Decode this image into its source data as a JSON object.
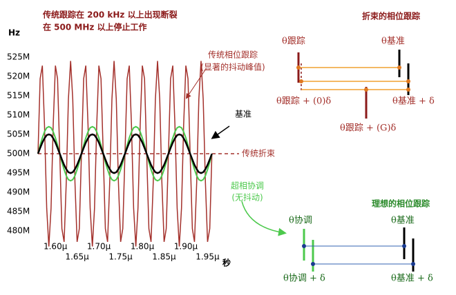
{
  "chart_data": {
    "type": "line",
    "title": [
      "传统跟踪在 200 kHz 以上出现断裂",
      "在 500 MHz 以上停止工作"
    ],
    "y_label": "Hz",
    "x_label": "秒",
    "xlim": [
      1.56,
      1.97
    ],
    "ylim": [
      477,
      528
    ],
    "xticks": [
      {
        "value": 1.6,
        "label": "1.60µ"
      },
      {
        "value": 1.65,
        "label": "1.65µ"
      },
      {
        "value": 1.7,
        "label": "1.70µ"
      },
      {
        "value": 1.75,
        "label": "1.75µ"
      },
      {
        "value": 1.8,
        "label": "1.80µ"
      },
      {
        "value": 1.85,
        "label": "1.85µ"
      },
      {
        "value": 1.9,
        "label": "1.90µ"
      },
      {
        "value": 1.95,
        "label": "1.95µ"
      }
    ],
    "yticks": [
      {
        "value": 480,
        "label": "480M"
      },
      {
        "value": 485,
        "label": "485M"
      },
      {
        "value": 490,
        "label": "490M"
      },
      {
        "value": 495,
        "label": "495M"
      },
      {
        "value": 500,
        "label": "500M"
      },
      {
        "value": 505,
        "label": "505M"
      },
      {
        "value": 510,
        "label": "510M"
      },
      {
        "value": 515,
        "label": "515M"
      },
      {
        "value": 520,
        "label": "520M"
      },
      {
        "value": 525,
        "label": "525M"
      }
    ],
    "x": [
      1.56,
      1.565,
      1.57,
      1.575,
      1.58,
      1.585,
      1.59,
      1.595,
      1.6,
      1.605,
      1.61,
      1.615,
      1.62,
      1.625,
      1.63,
      1.635,
      1.64,
      1.645,
      1.65,
      1.655,
      1.66,
      1.665,
      1.67,
      1.675,
      1.68,
      1.685,
      1.69,
      1.695,
      1.7,
      1.705,
      1.71,
      1.715,
      1.72,
      1.725,
      1.73,
      1.735,
      1.74,
      1.745,
      1.75,
      1.755,
      1.76,
      1.765,
      1.77,
      1.775,
      1.78,
      1.785,
      1.79,
      1.795,
      1.8,
      1.805,
      1.81,
      1.815,
      1.82,
      1.825,
      1.83,
      1.835,
      1.84,
      1.845,
      1.85,
      1.855,
      1.86,
      1.865,
      1.87,
      1.875,
      1.88,
      1.885,
      1.89,
      1.895,
      1.9,
      1.905,
      1.91,
      1.915,
      1.92,
      1.925,
      1.93,
      1.935,
      1.94,
      1.945,
      1.95,
      1.955,
      1.96
    ],
    "series": [
      {
        "name": "传统相位跟踪",
        "color": "#a3302b",
        "values": [
          500,
          519.4,
          522.8,
          507.4,
          485.9,
          476,
          485.9,
          507.4,
          522.8,
          519.4,
          500,
          480.6,
          477.2,
          492.6,
          514.1,
          524,
          514.1,
          492.6,
          477.2,
          480.6,
          500,
          519.4,
          522.8,
          507.4,
          485.9,
          476,
          485.9,
          507.4,
          522.8,
          519.4,
          500,
          480.6,
          477.2,
          492.6,
          514.1,
          524,
          514.1,
          492.6,
          477.2,
          480.6,
          500,
          519.4,
          522.8,
          507.4,
          485.9,
          476,
          485.9,
          507.4,
          522.8,
          519.4,
          500,
          480.6,
          477.2,
          492.6,
          514.1,
          524,
          514.1,
          492.6,
          477.2,
          480.6,
          500,
          519.4,
          522.8,
          507.4,
          485.9,
          476,
          485.9,
          507.4,
          522.8,
          519.4,
          500,
          480.6,
          477.2,
          492.6,
          514.1,
          524,
          514.1,
          492.6,
          477.2,
          480.6,
          500
        ]
      },
      {
        "name": "超相协调",
        "color": "#4cc94c",
        "values": [
          500,
          502.2,
          504.1,
          505.7,
          506.7,
          507,
          506.7,
          505.7,
          504.1,
          502.2,
          500,
          497.8,
          495.9,
          494.3,
          493.3,
          493,
          493.3,
          494.3,
          495.9,
          497.8,
          500,
          502.2,
          504.1,
          505.7,
          506.7,
          507,
          506.7,
          505.7,
          504.1,
          502.2,
          500,
          497.8,
          495.9,
          494.3,
          493.3,
          493,
          493.3,
          494.3,
          495.9,
          497.8,
          500,
          502.2,
          504.1,
          505.7,
          506.7,
          507,
          506.7,
          505.7,
          504.1,
          502.2,
          500,
          497.8,
          495.9,
          494.3,
          493.3,
          493,
          493.3,
          494.3,
          495.9,
          497.8,
          500,
          502.2,
          504.1,
          505.7,
          506.7,
          507,
          506.7,
          505.7,
          504.1,
          502.2,
          500,
          497.8,
          495.9,
          494.3,
          493.3,
          493,
          493.3,
          494.3,
          495.9,
          497.8,
          500
        ]
      },
      {
        "name": "基准",
        "color": "#000000",
        "values": [
          500,
          501.5,
          502.9,
          504,
          504.8,
          505,
          504.8,
          504,
          502.9,
          501.5,
          500,
          498.5,
          497.1,
          496,
          495.2,
          495,
          495.2,
          496,
          497.1,
          498.5,
          500,
          501.5,
          502.9,
          504,
          504.8,
          505,
          504.8,
          504,
          502.9,
          501.5,
          500,
          498.5,
          497.1,
          496,
          495.2,
          495,
          495.2,
          496,
          497.1,
          498.5,
          500,
          501.5,
          502.9,
          504,
          504.8,
          505,
          504.8,
          504,
          502.9,
          501.5,
          500,
          498.5,
          497.1,
          496,
          495.2,
          495,
          495.2,
          496,
          497.1,
          498.5,
          500,
          501.5,
          502.9,
          504,
          504.8,
          505,
          504.8,
          504,
          502.9,
          501.5,
          500,
          498.5,
          497.1,
          496,
          495.2,
          495,
          495.2,
          496,
          497.1,
          498.5,
          500
        ]
      }
    ],
    "reference_line": {
      "value": 500,
      "label": "传统折束",
      "color": "#a3302b"
    },
    "annotations": [
      "(显著的抖动峰值)",
      "(无抖动)"
    ]
  },
  "diagrams": {
    "broken": {
      "title": "折束的相位跟踪",
      "labels": [
        "θ跟踪",
        "θ基准",
        "θ跟踪 + (0)δ",
        "θ基准 + δ",
        "θ跟踪 + (G)δ"
      ]
    },
    "ideal": {
      "title": "理想的相位跟踪",
      "labels": [
        "θ协调",
        "θ基准",
        "θ协调 + δ",
        "θ基准 + δ"
      ]
    }
  }
}
